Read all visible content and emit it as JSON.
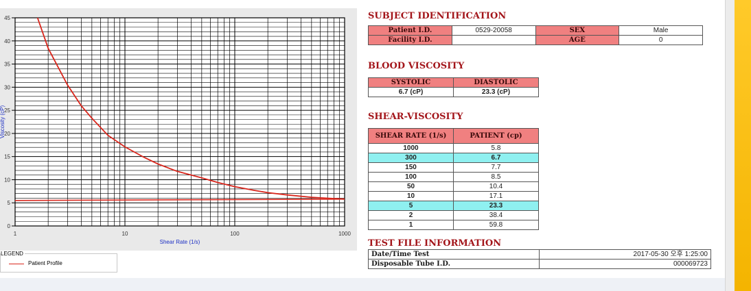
{
  "colors": {
    "accent": "#f4b400",
    "header_fill": "#f08080",
    "title_red": "#a3151a",
    "highlight": "#8ff0f0",
    "curve": "#d9261c"
  },
  "chart_data": {
    "type": "line",
    "xscale": "log",
    "xlim": [
      1,
      1000
    ],
    "ylim": [
      0,
      45
    ],
    "xlabel": "Shear Rate (1/s)",
    "ylabel": "Viscosity (cP)",
    "grid": true,
    "x_ticks": [
      "1",
      "10",
      "100",
      "1000"
    ],
    "y_ticks": [
      "0",
      "5",
      "10",
      "15",
      "20",
      "25",
      "30",
      "35",
      "40",
      "45"
    ],
    "legend": {
      "title": "LEGEND",
      "items": [
        "Patient Profile"
      ]
    },
    "series": [
      {
        "name": "Patient Profile",
        "x": [
          1.6,
          2,
          3,
          4,
          5,
          7,
          10,
          15,
          20,
          30,
          50,
          70,
          100,
          150,
          200,
          300,
          500,
          700,
          1000
        ],
        "y": [
          45,
          38.4,
          30.5,
          26,
          23.3,
          19.6,
          17.1,
          14.8,
          13.4,
          11.8,
          10.4,
          9.4,
          8.5,
          7.7,
          7.2,
          6.7,
          6.2,
          6.0,
          5.8
        ]
      },
      {
        "x": [
          1,
          1000
        ],
        "y": [
          5.5,
          5.8
        ]
      }
    ]
  },
  "subject": {
    "title": "SUBJECT IDENTIFICATION",
    "patient_id_label": "Patient I.D.",
    "patient_id": "0529-20058",
    "sex_label": "SEX",
    "sex": "Male",
    "facility_label": "Facility I.D.",
    "facility": "",
    "age_label": "AGE",
    "age": "0"
  },
  "blood": {
    "title": "BLOOD VISCOSITY",
    "systolic_label": "SYSTOLIC",
    "diastolic_label": "DIASTOLIC",
    "systolic": "6.7 (cP)",
    "diastolic": "23.3 (cP)"
  },
  "shear": {
    "title": "SHEAR-VISCOSITY",
    "col_rate": "SHEAR RATE (1/s)",
    "col_patient": "PATIENT (cp)",
    "rows": [
      {
        "rate": "1000",
        "val": "5.8"
      },
      {
        "rate": "300",
        "val": "6.7"
      },
      {
        "rate": "150",
        "val": "7.7"
      },
      {
        "rate": "100",
        "val": "8.5"
      },
      {
        "rate": "50",
        "val": "10.4"
      },
      {
        "rate": "10",
        "val": "17.1"
      },
      {
        "rate": "5",
        "val": "23.3"
      },
      {
        "rate": "2",
        "val": "38.4"
      },
      {
        "rate": "1",
        "val": "59.8"
      }
    ]
  },
  "file": {
    "title": "TEST FILE INFORMATION",
    "date_label": "Date/Time Test",
    "date_value": "2017-05-30  오후 1:25:00",
    "tube_label": "Disposable Tube I.D.",
    "tube_value": "000069723"
  }
}
